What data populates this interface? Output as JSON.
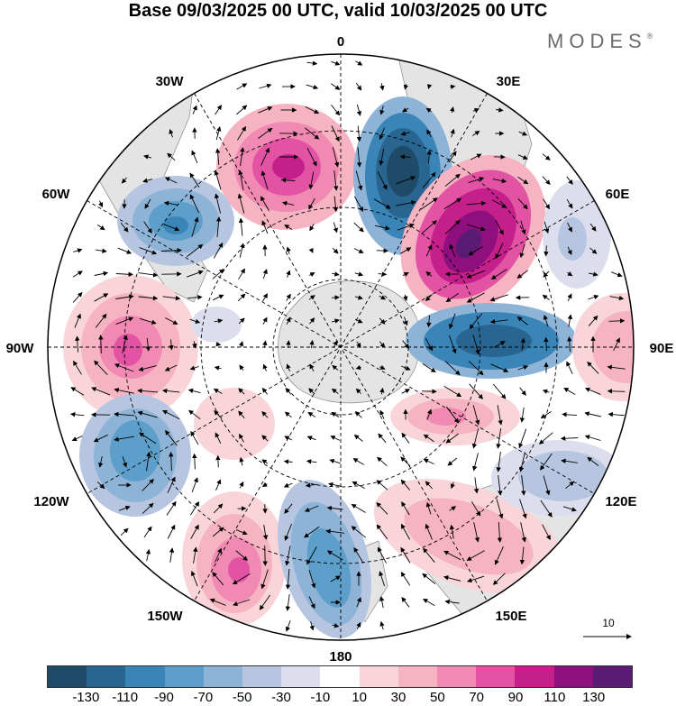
{
  "title": "Base 09/03/2025 00 UTC, valid 10/03/2025 00 UTC",
  "brand": {
    "text": "MODES",
    "mark": "®"
  },
  "map": {
    "projection": "south-polar-stereographic",
    "longitude_labels": [
      {
        "text": "0",
        "lon": 0
      },
      {
        "text": "30E",
        "lon": 30
      },
      {
        "text": "60E",
        "lon": 60
      },
      {
        "text": "90E",
        "lon": 90
      },
      {
        "text": "120E",
        "lon": 120
      },
      {
        "text": "150E",
        "lon": 150
      },
      {
        "text": "180",
        "lon": 180
      },
      {
        "text": "150W",
        "lon": -150
      },
      {
        "text": "120W",
        "lon": -120
      },
      {
        "text": "90W",
        "lon": -90
      },
      {
        "text": "60W",
        "lon": -60
      },
      {
        "text": "30W",
        "lon": -30
      }
    ],
    "reference_vector_label": "10",
    "anomaly_colors": {
      "blue_deep": "#1f4e6e",
      "blue": "#3a7fb0",
      "blue_light": "#a8bed8",
      "pink": "#f39cc0",
      "magenta": "#c8207a",
      "purple": "#5a1a6e",
      "land": "#e6e6e6"
    }
  },
  "colorbar": {
    "colors": [
      "#1e4b67",
      "#286591",
      "#3a85b8",
      "#5d9fca",
      "#8db3d6",
      "#b6c6e1",
      "#dcdeee",
      "#ffffff",
      "#f9d4d8",
      "#f6b3c2",
      "#f18ab3",
      "#e253a4",
      "#c41f8a",
      "#8f0f7e",
      "#5b1b72"
    ],
    "labels": [
      "-130",
      "-110",
      "-90",
      "-70",
      "-50",
      "-30",
      "-10",
      "10",
      "30",
      "50",
      "70",
      "90",
      "110",
      "130"
    ]
  }
}
